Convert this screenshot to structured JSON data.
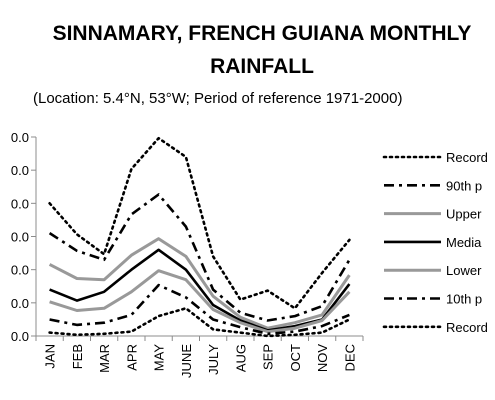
{
  "chart_data": {
    "type": "line",
    "title_line1": "SINNAMARY, FRENCH GUIANA MONTHLY",
    "title_line2": "RAINFALL",
    "subtitle": "(Location: 5.4°N, 53°W; Period of reference 1971-2000)",
    "categories": [
      "JAN",
      "FEB",
      "MAR",
      "APR",
      "MAY",
      "JUNE",
      "JULY",
      "AUG",
      "SEP",
      "OCT",
      "NOV",
      "DEC"
    ],
    "y_tick_labels": [
      "0.0",
      "0.0",
      "0.0",
      "0.0",
      "0.0",
      "0.0",
      "0.0"
    ],
    "ylim": [
      0,
      1
    ],
    "grid": false,
    "legend_position": "right",
    "series": [
      {
        "name": "Record",
        "style": "dotted",
        "color": "#000000",
        "values": [
          0.667,
          0.511,
          0.411,
          0.839,
          0.994,
          0.9,
          0.4,
          0.183,
          0.228,
          0.139,
          0.317,
          0.483
        ]
      },
      {
        "name": "90th p",
        "style": "dashdot",
        "color": "#000000",
        "values": [
          0.517,
          0.428,
          0.383,
          0.611,
          0.711,
          0.55,
          0.233,
          0.117,
          0.078,
          0.1,
          0.15,
          0.383
        ]
      },
      {
        "name": "Upper",
        "style": "solid",
        "color": "#999999",
        "values": [
          0.36,
          0.289,
          0.283,
          0.406,
          0.489,
          0.4,
          0.2,
          0.094,
          0.039,
          0.067,
          0.106,
          0.306
        ]
      },
      {
        "name": "Media",
        "style": "solid",
        "color": "#000000",
        "values": [
          0.233,
          0.178,
          0.222,
          0.333,
          0.433,
          0.333,
          0.156,
          0.078,
          0.028,
          0.05,
          0.083,
          0.261
        ]
      },
      {
        "name": "Lower",
        "style": "solid",
        "color": "#999999",
        "values": [
          0.172,
          0.128,
          0.139,
          0.222,
          0.328,
          0.283,
          0.133,
          0.067,
          0.022,
          0.039,
          0.078,
          0.222
        ]
      },
      {
        "name": "10th p",
        "style": "dashdot",
        "color": "#000000",
        "values": [
          0.083,
          0.056,
          0.067,
          0.106,
          0.256,
          0.194,
          0.083,
          0.044,
          0.011,
          0.022,
          0.05,
          0.106
        ]
      },
      {
        "name": "Record",
        "style": "dotted",
        "color": "#000000",
        "values": [
          0.017,
          0.006,
          0.011,
          0.022,
          0.1,
          0.139,
          0.033,
          0.017,
          0.0,
          0.006,
          0.017,
          0.083
        ]
      }
    ]
  }
}
